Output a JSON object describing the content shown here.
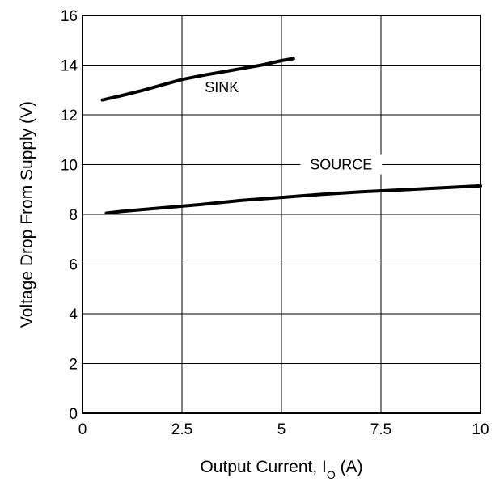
{
  "chart_data": {
    "type": "line",
    "title": "",
    "xlabel_main": "Output Current, I",
    "xlabel_sub": "O",
    "xlabel_unit": " (A)",
    "ylabel": "Voltage Drop From Supply (V)",
    "xlim": [
      0,
      10
    ],
    "ylim": [
      0,
      16
    ],
    "x_ticks": [
      {
        "value": 0,
        "label": "0"
      },
      {
        "value": 2.5,
        "label": "2.5"
      },
      {
        "value": 5,
        "label": "5"
      },
      {
        "value": 7.5,
        "label": "7.5"
      },
      {
        "value": 10,
        "label": "10"
      }
    ],
    "y_ticks": [
      {
        "value": 0,
        "label": "0"
      },
      {
        "value": 2,
        "label": "2"
      },
      {
        "value": 4,
        "label": "4"
      },
      {
        "value": 6,
        "label": "6"
      },
      {
        "value": 8,
        "label": "8"
      },
      {
        "value": 10,
        "label": "10"
      },
      {
        "value": 12,
        "label": "12"
      },
      {
        "value": 14,
        "label": "14"
      },
      {
        "value": 16,
        "label": "16"
      }
    ],
    "grid": true,
    "series": [
      {
        "name": "SINK",
        "label_at": [
          3.5,
          13.1
        ],
        "x": [
          0.5,
          1.0,
          1.5,
          2.0,
          2.5,
          3.0,
          3.5,
          4.0,
          4.5,
          5.0,
          5.3
        ],
        "y": [
          12.6,
          12.78,
          12.98,
          13.2,
          13.42,
          13.58,
          13.72,
          13.86,
          14.0,
          14.18,
          14.26
        ]
      },
      {
        "name": "SOURCE",
        "label_at": [
          6.5,
          10.0
        ],
        "x": [
          0.6,
          1.0,
          2.0,
          3.0,
          4.0,
          5.0,
          6.0,
          7.0,
          8.0,
          9.0,
          10.0
        ],
        "y": [
          8.05,
          8.12,
          8.26,
          8.4,
          8.56,
          8.68,
          8.8,
          8.9,
          8.98,
          9.06,
          9.14
        ]
      }
    ]
  }
}
